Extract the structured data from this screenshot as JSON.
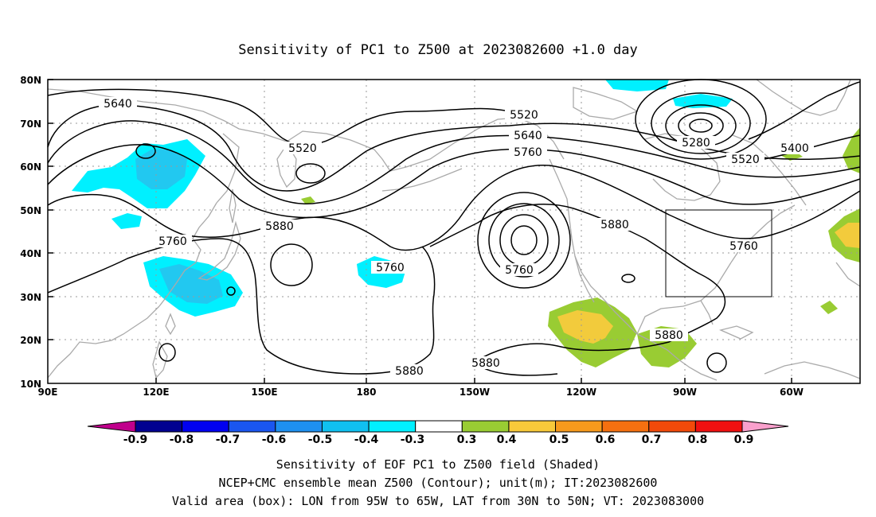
{
  "title": "Sensitivity of PC1 to Z500 at 2023082600 +1.0 day",
  "map": {
    "lon_labels": [
      "90E",
      "120E",
      "150E",
      "180",
      "150W",
      "120W",
      "90W",
      "60W"
    ],
    "lat_labels": [
      "80N",
      "70N",
      "60N",
      "50N",
      "40N",
      "30N",
      "20N",
      "10N"
    ],
    "contour_labels": [
      "5640",
      "5520",
      "5640",
      "5760",
      "5520",
      "5280",
      "5400",
      "5520",
      "5760",
      "5880",
      "5760",
      "5760",
      "5880",
      "5760",
      "5880",
      "5880",
      "5880"
    ],
    "valid_box": {
      "lon": [
        "95W",
        "65W"
      ],
      "lat": [
        "30N",
        "50N"
      ]
    },
    "shaded_colors": {
      "cyan": "#00f0ff",
      "lightblue": "#22d4f4",
      "green": "#99cc33",
      "gold": "#f2cb3c"
    }
  },
  "colorbar": {
    "labels": [
      "-0.9",
      "-0.8",
      "-0.7",
      "-0.6",
      "-0.5",
      "-0.4",
      "-0.3",
      "0.3",
      "0.4",
      "0.5",
      "0.6",
      "0.7",
      "0.8",
      "0.9"
    ],
    "colors": [
      "#000090",
      "#0000f0",
      "#1a56f0",
      "#1e90f0",
      "#10c0f0",
      "#00f0ff",
      "#ffffff",
      "#99cc33",
      "#f8c93a",
      "#f79a1c",
      "#f57010",
      "#f24a0a",
      "#f01010"
    ],
    "low_arrow": "#c0008c",
    "high_arrow": "#f9a0cc"
  },
  "footer": {
    "line1": "Sensitivity of EOF PC1 to Z500 field (Shaded)",
    "line2": "NCEP+CMC ensemble mean Z500 (Contour); unit(m); IT:2023082600",
    "line3": "Valid area (box): LON from 95W to 65W, LAT from 30N to 50N; VT: 2023083000"
  }
}
